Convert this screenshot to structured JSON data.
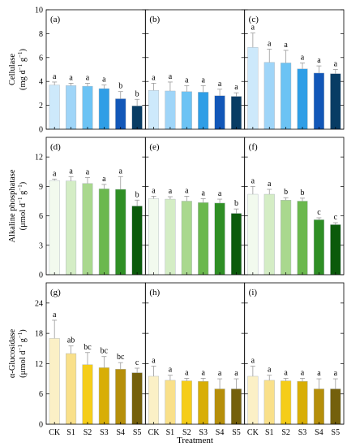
{
  "chart_data": {
    "type": "bar",
    "categories": [
      "CK",
      "S1",
      "S2",
      "S3",
      "S4",
      "S5"
    ],
    "xlabel": "Treatment",
    "rows": [
      {
        "ylabel_main": "Cellulase",
        "ylabel_unit_parts": [
          "(mg d",
          "−1",
          " g",
          "−1",
          ")"
        ],
        "ylim": [
          0,
          10
        ],
        "yticks": [
          0,
          2,
          4,
          6,
          8,
          10
        ],
        "colors": [
          "#cde9fb",
          "#9fd5f8",
          "#6cc3f4",
          "#2f9ee6",
          "#1257b8",
          "#083c64"
        ],
        "panels": [
          {
            "label": "(a)",
            "values": [
              3.7,
              3.65,
              3.6,
              3.4,
              2.55,
              1.95
            ],
            "errors": [
              0.25,
              0.2,
              0.25,
              0.3,
              0.6,
              0.55
            ],
            "letters": [
              "a",
              "a",
              "a",
              "a",
              "b",
              "b"
            ]
          },
          {
            "label": "(b)",
            "values": [
              3.25,
              3.2,
              3.15,
              3.1,
              2.8,
              2.75
            ],
            "errors": [
              0.6,
              0.75,
              0.5,
              0.55,
              0.55,
              0.3
            ],
            "letters": [
              "a",
              "a",
              "a",
              "a",
              "a",
              "a"
            ]
          },
          {
            "label": "(c)",
            "values": [
              6.85,
              5.6,
              5.55,
              5.05,
              4.7,
              4.65
            ],
            "errors": [
              1.2,
              1.1,
              1.05,
              0.5,
              0.6,
              0.35
            ],
            "letters": [
              "a",
              "a",
              "a",
              "a",
              "a",
              "a"
            ]
          }
        ]
      },
      {
        "ylabel_main": "Alkaline phosphatase",
        "ylabel_unit_parts": [
          "(μmol d",
          "−1",
          " g",
          "−1",
          ")"
        ],
        "ylim": [
          0,
          14
        ],
        "yticks": [
          0,
          3,
          6,
          9,
          12
        ],
        "colors": [
          "#f2faee",
          "#d4edc5",
          "#a9d88e",
          "#6bb84e",
          "#2f8f25",
          "#0b5a0b"
        ],
        "panels": [
          {
            "label": "(d)",
            "values": [
              9.6,
              9.55,
              9.3,
              8.75,
              8.7,
              7.0
            ],
            "errors": [
              0.15,
              0.45,
              0.6,
              0.45,
              1.3,
              0.6
            ],
            "letters": [
              "a",
              "a",
              "a",
              "a",
              "a",
              "b"
            ]
          },
          {
            "label": "(e)",
            "values": [
              7.75,
              7.7,
              7.5,
              7.35,
              7.3,
              6.25
            ],
            "errors": [
              0.25,
              0.25,
              0.5,
              0.4,
              0.4,
              0.45
            ],
            "letters": [
              "a",
              "a",
              "a",
              "a",
              "a",
              "b"
            ]
          },
          {
            "label": "(f)",
            "values": [
              8.2,
              8.2,
              7.6,
              7.5,
              5.6,
              5.1
            ],
            "errors": [
              0.8,
              0.5,
              0.25,
              0.3,
              0.2,
              0.2
            ],
            "letters": [
              "a",
              "a",
              "b",
              "b",
              "c",
              "c"
            ]
          }
        ]
      },
      {
        "ylabel_main": "α-Glucosidase",
        "ylabel_unit_parts": [
          "(μmol d",
          "−1",
          " g",
          "−1",
          ")"
        ],
        "ylim": [
          0,
          28
        ],
        "yticks": [
          0,
          6,
          12,
          18,
          24
        ],
        "colors": [
          "#fbf0c6",
          "#f9e08a",
          "#f5cd19",
          "#d8ae06",
          "#b68f0a",
          "#74600c"
        ],
        "panels": [
          {
            "label": "(g)",
            "values": [
              17.0,
              14.0,
              11.8,
              11.2,
              10.9,
              10.2
            ],
            "errors": [
              3.6,
              1.5,
              2.4,
              2.2,
              1.3,
              0.9
            ],
            "letters": [
              "a",
              "ab",
              "bc",
              "bc",
              "bc",
              "c"
            ]
          },
          {
            "label": "(h)",
            "values": [
              9.5,
              8.7,
              8.6,
              8.5,
              7.0,
              7.0
            ],
            "errors": [
              2.0,
              1.0,
              0.5,
              0.6,
              2.0,
              2.0
            ],
            "letters": [
              "a",
              "a",
              "a",
              "a",
              "a",
              "a"
            ]
          },
          {
            "label": "(i)",
            "values": [
              9.5,
              8.7,
              8.6,
              8.5,
              7.0,
              7.0
            ],
            "errors": [
              2.0,
              1.0,
              0.5,
              0.6,
              2.0,
              2.0
            ],
            "letters": [
              "a",
              "a",
              "a",
              "a",
              "a",
              "a"
            ]
          }
        ]
      }
    ]
  }
}
